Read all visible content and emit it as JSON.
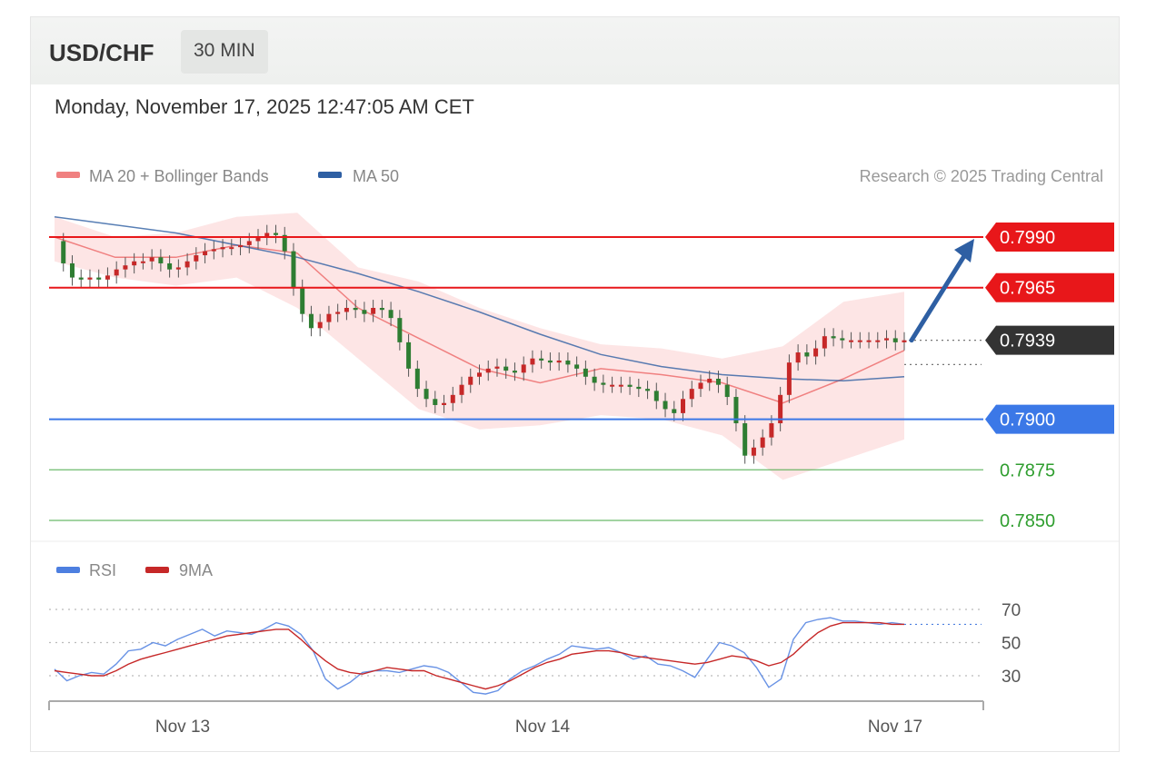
{
  "header": {
    "pair": "USD/CHF",
    "timeframe": "30 MIN"
  },
  "datetime": "Monday, November 17, 2025 12:47:05 AM CET",
  "legend": {
    "ma20": "MA 20 + Bollinger Bands",
    "ma50": "MA 50",
    "credit": "Research © 2025 Trading Central",
    "rsi": "RSI",
    "rsi_ma": "9MA"
  },
  "colors": {
    "resistance": "#e8171a",
    "support": "#3b78e7",
    "target": "#2f9e2f",
    "current": "#333333",
    "ma20": "#f08080",
    "ma50": "#2e5fa3",
    "bands": "#fde2e2",
    "bull": "#c62828",
    "bear": "#2e7d32",
    "arrow": "#2e5fa3",
    "rsi": "#4d7fe0"
  },
  "chart_data": [
    {
      "type": "candlestick",
      "title": "USD/CHF",
      "timeframe": "30 MIN",
      "x_ticks": [
        "Nov 13",
        "Nov 14",
        "Nov 17"
      ],
      "levels": [
        {
          "value": 0.799,
          "label": "0.7990",
          "kind": "resistance"
        },
        {
          "value": 0.7965,
          "label": "0.7965",
          "kind": "resistance"
        },
        {
          "value": 0.7939,
          "label": "0.7939",
          "kind": "current"
        },
        {
          "value": 0.79,
          "label": "0.7900",
          "kind": "support"
        },
        {
          "value": 0.7875,
          "label": "0.7875",
          "kind": "target"
        },
        {
          "value": 0.785,
          "label": "0.7850",
          "kind": "target"
        }
      ],
      "close_series": [
        0.7988,
        0.7977,
        0.797,
        0.7969,
        0.797,
        0.7969,
        0.7971,
        0.7974,
        0.7976,
        0.7978,
        0.7978,
        0.798,
        0.7977,
        0.7974,
        0.7975,
        0.7978,
        0.7981,
        0.7983,
        0.7984,
        0.7985,
        0.7985,
        0.7986,
        0.7988,
        0.799,
        0.7992,
        0.7991,
        0.7983,
        0.7965,
        0.7952,
        0.7945,
        0.7948,
        0.7952,
        0.7953,
        0.7955,
        0.7954,
        0.7952,
        0.7955,
        0.7954,
        0.795,
        0.7938,
        0.7925,
        0.7915,
        0.791,
        0.7907,
        0.7908,
        0.7912,
        0.7917,
        0.7921,
        0.7923,
        0.7925,
        0.7926,
        0.7924,
        0.7923,
        0.7927,
        0.793,
        0.7929,
        0.7928,
        0.7929,
        0.7927,
        0.7925,
        0.7921,
        0.7918,
        0.7917,
        0.7917,
        0.7917,
        0.7916,
        0.7915,
        0.7914,
        0.7909,
        0.7905,
        0.7903,
        0.791,
        0.7915,
        0.7918,
        0.792,
        0.7917,
        0.7911,
        0.7898,
        0.7882,
        0.7886,
        0.7891,
        0.7898,
        0.7912,
        0.7928,
        0.7933,
        0.7931,
        0.7935,
        0.7941,
        0.794,
        0.7939,
        0.7939,
        0.7939,
        0.7939,
        0.7939,
        0.794,
        0.7938,
        0.7939
      ],
      "ma50": [
        0.8,
        0.7996,
        0.7992,
        0.7986,
        0.798,
        0.7972,
        0.7963,
        0.7953,
        0.7942,
        0.7932,
        0.7926,
        0.7922,
        0.792,
        0.7919,
        0.7921
      ],
      "ma20": [
        0.799,
        0.798,
        0.798,
        0.7986,
        0.7982,
        0.7955,
        0.794,
        0.7925,
        0.7918,
        0.7925,
        0.7922,
        0.7918,
        0.7908,
        0.792,
        0.7934
      ],
      "bb_upper": [
        0.8,
        0.799,
        0.7992,
        0.8,
        0.8002,
        0.7975,
        0.7968,
        0.7955,
        0.7945,
        0.7937,
        0.7935,
        0.793,
        0.7936,
        0.7958,
        0.7963
      ],
      "bb_lower": [
        0.7978,
        0.797,
        0.7966,
        0.797,
        0.7955,
        0.793,
        0.7905,
        0.7895,
        0.7897,
        0.7902,
        0.79,
        0.7892,
        0.787,
        0.788,
        0.789
      ],
      "arrow": {
        "from": 0.7939,
        "to": 0.799
      }
    },
    {
      "type": "line",
      "title": "RSI",
      "y_ticks": [
        70,
        50,
        30
      ],
      "series": [
        {
          "name": "RSI",
          "values": [
            34,
            27,
            30,
            32,
            31,
            37,
            45,
            46,
            50,
            48,
            52,
            55,
            58,
            54,
            57,
            56,
            55,
            58,
            62,
            60,
            55,
            45,
            28,
            22,
            26,
            32,
            33,
            33,
            32,
            34,
            36,
            35,
            32,
            26,
            20,
            19,
            21,
            28,
            33,
            36,
            40,
            43,
            48,
            47,
            46,
            47,
            44,
            40,
            42,
            37,
            36,
            33,
            29,
            40,
            50,
            48,
            44,
            35,
            23,
            28,
            52,
            62,
            64,
            65,
            63,
            63,
            62,
            61,
            62,
            61
          ]
        },
        {
          "name": "9MA",
          "values": [
            33,
            32,
            31,
            30,
            30,
            33,
            37,
            40,
            42,
            44,
            46,
            48,
            50,
            52,
            54,
            55,
            56,
            57,
            58,
            58,
            52,
            45,
            39,
            34,
            32,
            31,
            33,
            35,
            34,
            33,
            33,
            30,
            28,
            26,
            24,
            22,
            24,
            27,
            31,
            35,
            38,
            40,
            43,
            44,
            45,
            45,
            44,
            42,
            41,
            40,
            39,
            38,
            37,
            38,
            40,
            42,
            41,
            39,
            36,
            38,
            43,
            50,
            56,
            60,
            62,
            62,
            62,
            62,
            61,
            61
          ]
        }
      ]
    }
  ]
}
